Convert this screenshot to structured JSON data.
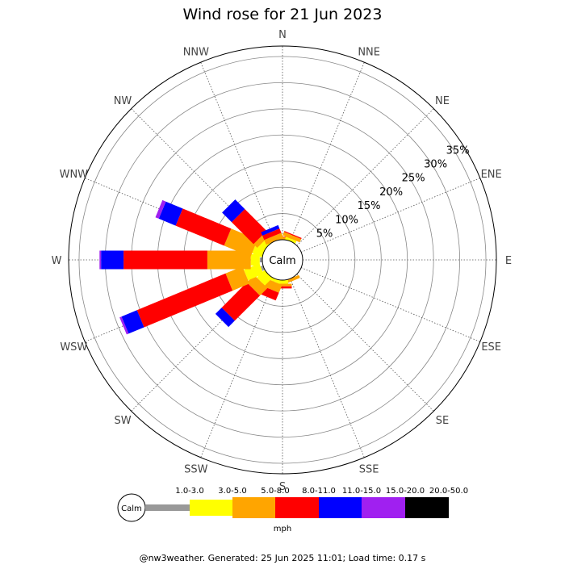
{
  "chart_data": {
    "type": "wind-rose",
    "title": "Wind rose for 21 Jun 2023",
    "directions": [
      "N",
      "NNE",
      "NE",
      "ENE",
      "E",
      "ESE",
      "SE",
      "SSE",
      "S",
      "SSW",
      "SW",
      "WSW",
      "W",
      "WNW",
      "NW",
      "NNW"
    ],
    "radial_ticks": [
      "5%",
      "10%",
      "15%",
      "20%",
      "25%",
      "30%",
      "35%"
    ],
    "radial_tick_values": [
      5,
      10,
      15,
      20,
      25,
      30,
      35
    ],
    "rmax_percent": 37,
    "calm_label": "Calm",
    "speed_bins": [
      {
        "label": "1.0-3.0",
        "color": "#999999"
      },
      {
        "label": "3.0-5.0",
        "color": "#ffff00"
      },
      {
        "label": "5.0-8.0",
        "color": "#ffa500"
      },
      {
        "label": "8.0-11.0",
        "color": "#ff0000"
      },
      {
        "label": "11.0-15.0",
        "color": "#0000ff"
      },
      {
        "label": "15.0-20.0",
        "color": "#a020f0"
      },
      {
        "label": "20.0-50.0",
        "color": "#000000"
      }
    ],
    "units": "mph",
    "series_cumulative_percent": {
      "N": [
        0,
        0,
        0.5,
        0.6,
        0.6,
        0.6,
        0.6
      ],
      "NNE": [
        0,
        0.5,
        1.2,
        1.4,
        1.4,
        1.4,
        1.4
      ],
      "NE": [
        0,
        0,
        0,
        0,
        0,
        0,
        0
      ],
      "ENE": [
        0,
        0,
        0,
        0,
        0,
        0,
        0
      ],
      "E": [
        0,
        0,
        0,
        0,
        0,
        0,
        0
      ],
      "ESE": [
        0,
        0,
        0,
        0,
        0,
        0,
        0
      ],
      "SE": [
        0,
        0,
        0,
        0,
        0,
        0,
        0
      ],
      "SSE": [
        0,
        0,
        0.6,
        0.6,
        0.6,
        0.6,
        0.6
      ],
      "S": [
        0,
        0.7,
        1.2,
        1.6,
        1.6,
        1.6,
        1.6
      ],
      "SSW": [
        0,
        0.6,
        2.2,
        3.8,
        3.8,
        3.8,
        3.8
      ],
      "SW": [
        0,
        2.0,
        4.0,
        10.8,
        12.5,
        12.5,
        12.5
      ],
      "WSW": [
        0.5,
        3.7,
        7.2,
        25.5,
        28.7,
        29.1,
        29.1
      ],
      "W": [
        0.5,
        2.2,
        10.5,
        26.5,
        30.8,
        31.1,
        31.1
      ],
      "WNW": [
        0,
        2.0,
        7.5,
        17.5,
        21.0,
        21.7,
        21.7
      ],
      "NW": [
        0,
        1.2,
        2.2,
        8.1,
        10.7,
        10.7,
        10.7
      ],
      "NNW": [
        0,
        0,
        1.0,
        1.9,
        2.6,
        2.6,
        2.6
      ]
    }
  },
  "footer": "@nw3weather. Generated: 25 Jun 2025 11:01; Load time: 0.17 s"
}
